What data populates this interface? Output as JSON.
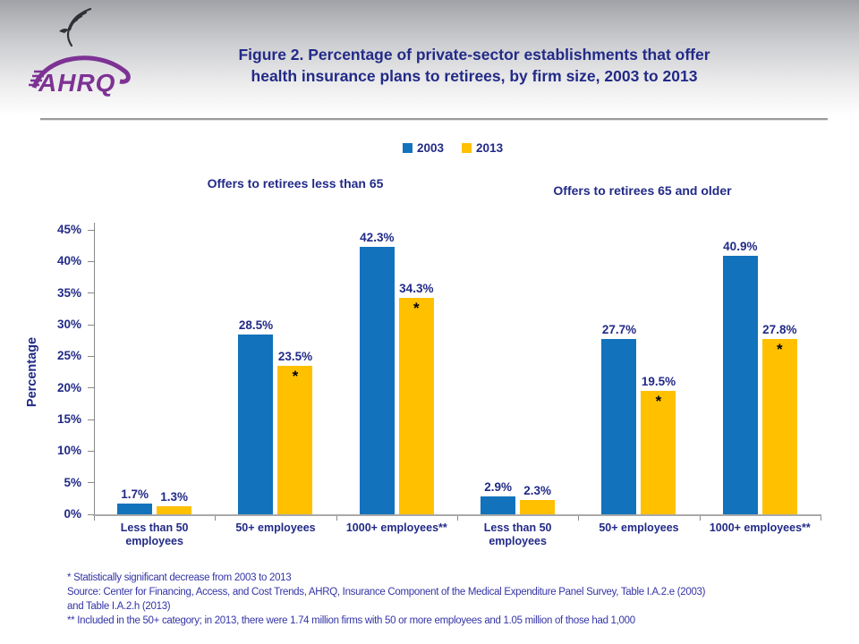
{
  "header": {
    "logo_text": "AHRQ",
    "title_lines": [
      "Figure 2. Percentage of private-sector establishments that offer",
      "health insurance plans to retirees, by firm size, 2003 to 2013"
    ]
  },
  "colors": {
    "bar_2003": "#1272BC",
    "bar_2013": "#FFC000",
    "navy_text": "#222A87",
    "footnote_text": "#3434A6",
    "logo_purple": "#7D3294",
    "axis_gray": "#8A8A8A"
  },
  "chart_data": {
    "type": "bar",
    "title": "Figure 2. Percentage of private-sector establishments that offer health insurance plans to retirees, by firm size, 2003 to 2013",
    "panel_titles": [
      "Offers to retirees less than 65",
      "Offers to retirees 65 and older"
    ],
    "ylabel": "Percentage",
    "ylim": [
      0,
      45
    ],
    "ytick_step": 5,
    "ytick_labels": [
      "0%",
      "5%",
      "10%",
      "15%",
      "20%",
      "25%",
      "30%",
      "35%",
      "40%",
      "45%"
    ],
    "grid": false,
    "legend_position": "top-center",
    "categories": [
      "Less than 50 employees",
      "50+ employees",
      "1000+ employees**",
      "Less than 50 employees",
      "50+ employees",
      "1000+ employees**"
    ],
    "series": [
      {
        "name": "2003",
        "color": "#1272BC",
        "values": [
          1.7,
          28.5,
          42.3,
          2.9,
          27.7,
          40.9
        ]
      },
      {
        "name": "2013",
        "color": "#FFC000",
        "values": [
          1.3,
          23.5,
          34.3,
          2.3,
          19.5,
          27.8
        ]
      }
    ],
    "significant_2013_decrease": [
      false,
      true,
      true,
      false,
      true,
      true
    ],
    "star_symbol": "*"
  },
  "footnotes": [
    "* Statistically significant decrease from 2003 to 2013",
    "Source: Center for Financing, Access, and Cost Trends, AHRQ, Insurance Component of the Medical Expenditure Panel Survey, Table I.A.2.e (2003)",
    "and Table I.A.2.h (2013)",
    "** Included in the 50+ category; in 2013, there were 1.74 million firms with 50 or more employees and 1.05 million of those had 1,000"
  ]
}
